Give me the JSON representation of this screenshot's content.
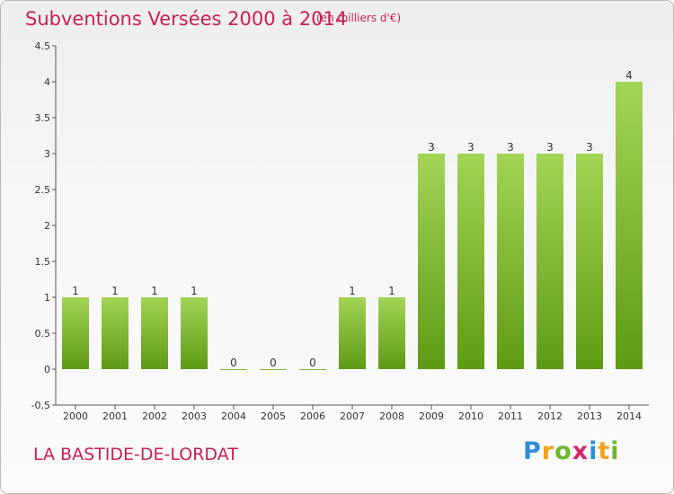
{
  "title": "Subventions Versées 2000 à 2014",
  "unit_note": "(en milliers d'€)",
  "commune": "LA BASTIDE-DE-LORDAT",
  "logo": {
    "letters": [
      "P",
      "r",
      "o",
      "x",
      "i",
      "t",
      "i"
    ],
    "colors": [
      "#2b8fd6",
      "#f0a21c",
      "#6bb82b",
      "#d32a6c",
      "#2b8fd6",
      "#f0a21c",
      "#6bb82b"
    ]
  },
  "colors": {
    "accent": "#c81e5a",
    "bar_light": "#a3d455",
    "bar_dark": "#5e9a14",
    "axis": "#555555"
  },
  "chart_data": {
    "type": "bar",
    "categories": [
      "2000",
      "2001",
      "2002",
      "2003",
      "2004",
      "2005",
      "2006",
      "2007",
      "2008",
      "2009",
      "2010",
      "2011",
      "2012",
      "2013",
      "2014"
    ],
    "values": [
      1,
      1,
      1,
      1,
      0,
      0,
      0,
      1,
      1,
      3,
      3,
      3,
      3,
      3,
      4
    ],
    "data_labels": [
      "1",
      "1",
      "1",
      "1",
      "0",
      "0",
      "0",
      "1",
      "1",
      "3",
      "3",
      "3",
      "3",
      "3",
      "4"
    ],
    "ylim": [
      -0.5,
      4.5
    ],
    "yticks": [
      "-0,5",
      "0",
      "0.5",
      "1",
      "1.5",
      "2",
      "2.5",
      "3",
      "3.5",
      "4",
      "4.5"
    ],
    "ytick_values": [
      -0.5,
      0,
      0.5,
      1,
      1.5,
      2,
      2.5,
      3,
      3.5,
      4,
      4.5
    ],
    "grid": false,
    "xlabel": "",
    "ylabel": ""
  }
}
